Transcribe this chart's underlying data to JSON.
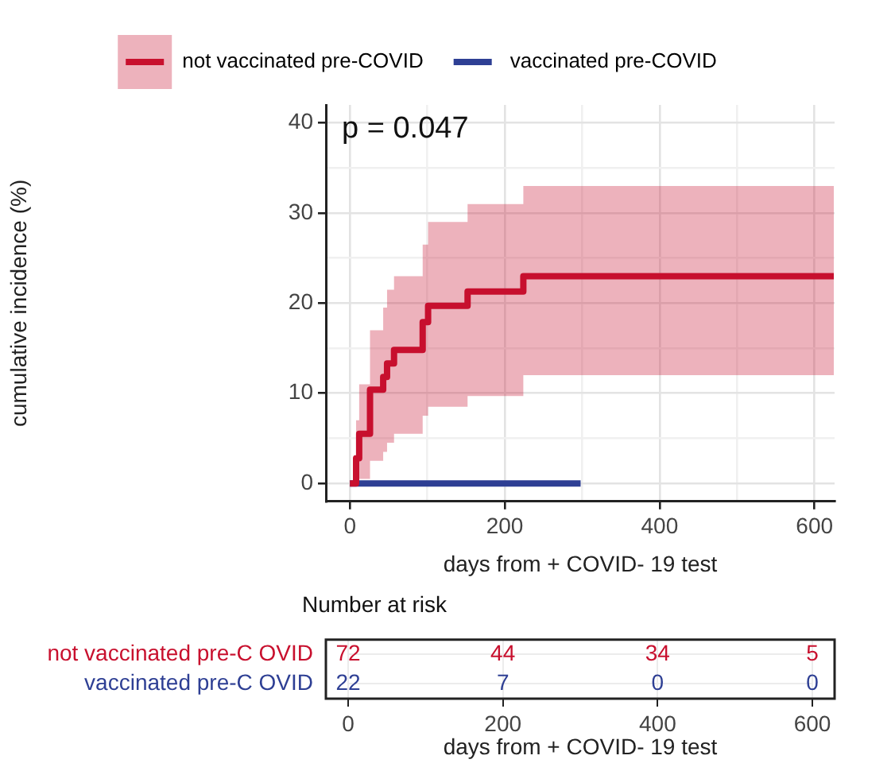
{
  "chart_data": [
    {
      "type": "step",
      "xlabel": "days from + COVID- 19 test",
      "ylabel": "cumulative incidence (%)",
      "annotations": [
        "p = 0.047"
      ],
      "x": [
        0,
        8,
        12,
        26,
        43,
        48,
        57,
        94,
        101,
        152,
        224,
        625
      ],
      "series": [
        {
          "name": "not vaccinated pre-COVID",
          "color": "#c8102e",
          "values": [
            0,
            2.8,
            5.5,
            10.4,
            11.8,
            13.3,
            14.8,
            17.9,
            19.7,
            21.3,
            23.0,
            23.0
          ],
          "lower": [
            0,
            0,
            0.5,
            2.5,
            3.5,
            4.5,
            5.5,
            7.5,
            8.5,
            9.7,
            12,
            12
          ],
          "upper": [
            0,
            7,
            11,
            17,
            19.5,
            21.5,
            23,
            26.5,
            29,
            31,
            33,
            33
          ]
        },
        {
          "name": "vaccinated pre-COVID",
          "color": "#2e3f94",
          "x": [
            0,
            298
          ],
          "values": [
            0,
            0
          ]
        }
      ],
      "xlim": [
        -31,
        626
      ],
      "xticks": [
        0,
        {
          "value": 100,
          "label": null
        },
        200,
        {
          "value": 300,
          "label": null
        },
        400,
        {
          "value": 500,
          "label": null
        },
        600
      ],
      "ylim": [
        -2,
        42
      ],
      "yticks": [
        0,
        {
          "value": 5,
          "label": null
        },
        10,
        {
          "value": 15,
          "label": null
        },
        20,
        {
          "value": 25,
          "label": null
        },
        30,
        {
          "value": 35,
          "label": null
        },
        40
      ],
      "grid": true,
      "legend": "top"
    },
    {
      "type": "heatmap",
      "title": "Number at risk",
      "xlabel": "days from + COVID- 19 test",
      "categories": [
        "0",
        "200",
        "400",
        "600"
      ],
      "y_categories": [
        "not vaccinated pre-C OVID",
        "vaccinated pre-C OVID"
      ],
      "cells": [
        [
          72,
          44,
          34,
          5
        ],
        [
          22,
          7,
          0,
          0
        ]
      ],
      "colors": [
        "#c8102e",
        "#2e3f94"
      ],
      "data_labels": true,
      "grid": true
    }
  ]
}
